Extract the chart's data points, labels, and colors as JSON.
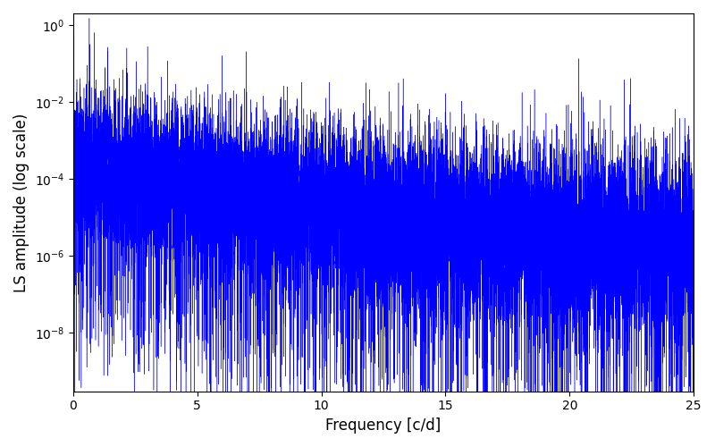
{
  "xlabel": "Frequency [c/d]",
  "ylabel": "LS amplitude (log scale)",
  "line_color": "#0000ff",
  "xlim": [
    0,
    25
  ],
  "ylim_bottom": 3e-10,
  "ylim_top": 2.0,
  "yscale": "log",
  "yticks": [
    1e-08,
    1e-06,
    0.0001,
    0.01,
    1.0
  ],
  "xticks": [
    0,
    5,
    10,
    15,
    20,
    25
  ],
  "figsize": [
    8.0,
    5.0
  ],
  "dpi": 100,
  "bg_color": "#ffffff",
  "seed": 12345,
  "n_points": 15000,
  "freq_max": 25.0
}
